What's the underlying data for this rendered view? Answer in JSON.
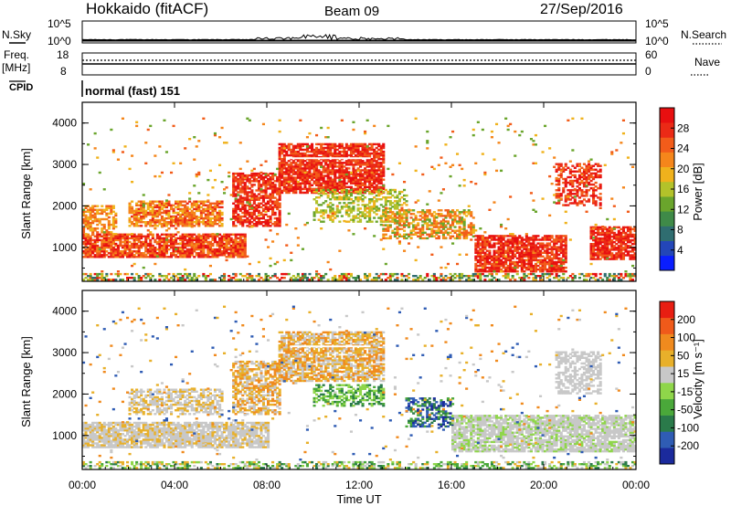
{
  "header": {
    "station": "Hokkaido (fitACF)",
    "beam": "Beam 09",
    "date": "27/Sep/2016"
  },
  "aux_panels": {
    "nsky_label": "N.Sky",
    "nsky_ticks": [
      "10^5",
      "10^0"
    ],
    "nsearch_label": "N.Search",
    "nsearch_ticks": [
      "10^5",
      "10^0"
    ],
    "freq_label": "Freq.",
    "freq_unit": "[MHz]",
    "freq_ticks": [
      "18",
      "8"
    ],
    "nave_label": "Nave",
    "nave_ticks": [
      "60",
      "0"
    ],
    "cpid_label": "CPID",
    "cpid_text": "normal (fast) 151"
  },
  "chart_data": [
    {
      "type": "heatmap",
      "name": "power",
      "ylabel": "Slant Range [km]",
      "xlabel": "Time UT",
      "x_ticks": [
        "00:00",
        "04:00",
        "08:00",
        "12:00",
        "16:00",
        "20:00",
        "00:00"
      ],
      "x_range_hours": [
        0,
        24
      ],
      "y_ticks": [
        1000,
        2000,
        3000,
        4000
      ],
      "y_range": [
        180,
        4500
      ],
      "colorbar": {
        "label": "Power [dB]",
        "ticks": [
          "4",
          "8",
          "12",
          "16",
          "20",
          "24",
          "28"
        ],
        "colors": [
          "#0a1eff",
          "#2346b8",
          "#2f6d70",
          "#3f8a48",
          "#6aa52c",
          "#b3c22a",
          "#f0b21c",
          "#f5861b",
          "#f25c1a",
          "#eb2a16",
          "#e80f10"
        ]
      }
    },
    {
      "type": "heatmap",
      "name": "velocity",
      "ylabel": "Slant Range [km]",
      "xlabel": "Time UT",
      "x_ticks": [
        "00:00",
        "04:00",
        "08:00",
        "12:00",
        "16:00",
        "20:00",
        "00:00"
      ],
      "x_range_hours": [
        0,
        24
      ],
      "y_ticks": [
        1000,
        2000,
        3000,
        4000
      ],
      "y_range": [
        180,
        4500
      ],
      "colorbar": {
        "label": "Velocity [m s⁻¹]",
        "ticks": [
          "200",
          "100",
          "50",
          "15",
          "-15",
          "-50",
          "-100",
          "-200"
        ],
        "colors": [
          "#1b2a9c",
          "#2f5cb4",
          "#2a7a4a",
          "#4aa83a",
          "#8fd64a",
          "#c8c8c8",
          "#e8b02a",
          "#f08a1e",
          "#f05a1a",
          "#e81e12"
        ]
      }
    }
  ],
  "colors": {
    "background": "#ffffff",
    "axis": "#000000",
    "echo_gray": "#c8c8c8",
    "echo_red": "#e82a14",
    "echo_orange": "#f08a1e",
    "echo_green": "#3f8a48"
  }
}
